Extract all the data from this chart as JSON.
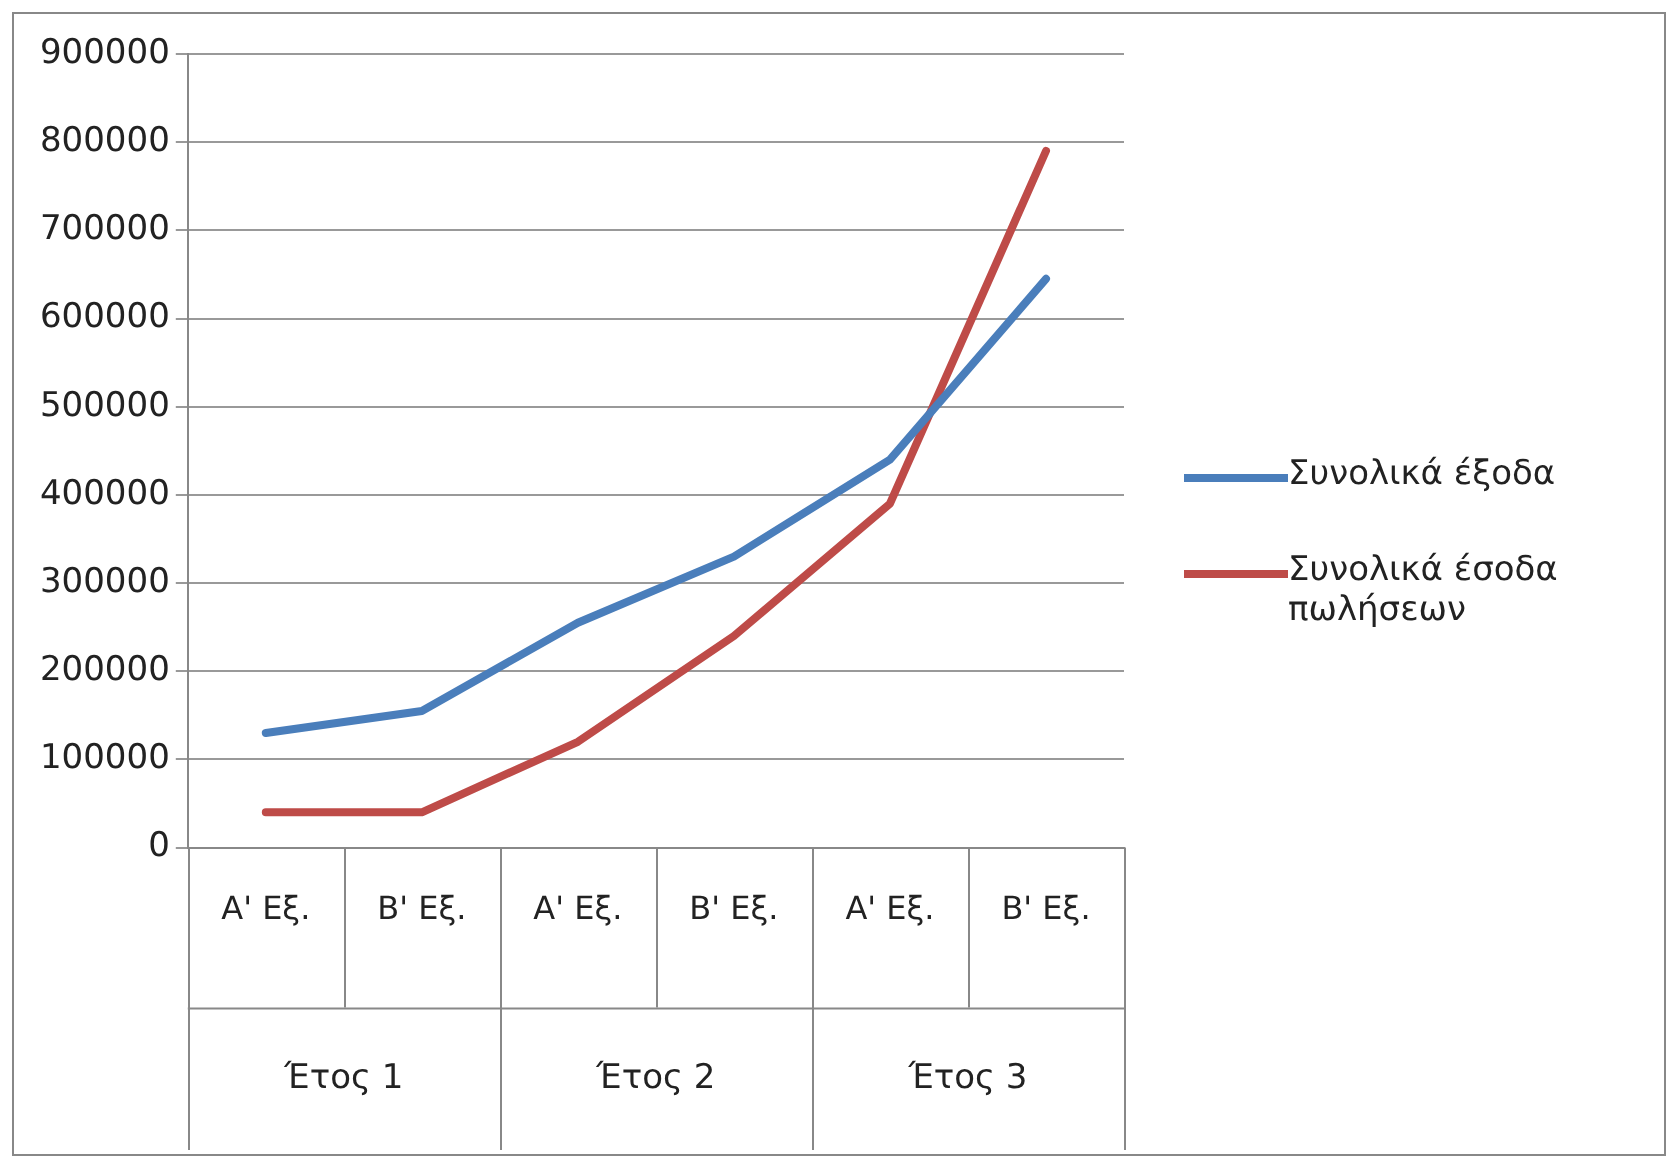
{
  "chart_data": {
    "type": "line",
    "categories": [
      "Α' Εξ.",
      "Β' Εξ.",
      "Α' Εξ.",
      "Β' Εξ.",
      "Α' Εξ.",
      "Β' Εξ."
    ],
    "series": [
      {
        "name": "Συνολικά έξοδα",
        "color": "#4a7ebb",
        "values": [
          130000,
          155000,
          255000,
          330000,
          440000,
          645000
        ]
      },
      {
        "name": "Συνολικά έσοδα πωλήσεων",
        "color": "#be4b48",
        "values": [
          40000,
          40000,
          120000,
          240000,
          390000,
          790000
        ]
      }
    ],
    "annotations": [
      "Έτος 1",
      "Έτος 2",
      "Έτος 3"
    ],
    "ylim": [
      0,
      900000
    ],
    "yticks": [
      0,
      100000,
      200000,
      300000,
      400000,
      500000,
      600000,
      700000,
      800000,
      900000
    ],
    "grid": "y",
    "legend": "right",
    "marker": "none",
    "line_style": "solid"
  }
}
